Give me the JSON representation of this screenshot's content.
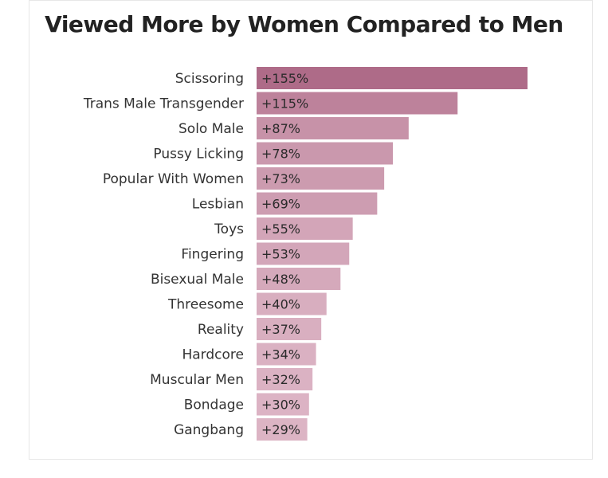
{
  "chart_data": {
    "type": "bar",
    "orientation": "horizontal",
    "title": "Viewed More by Women Compared to Men",
    "categories": [
      "Scissoring",
      "Trans Male Transgender",
      "Solo Male",
      "Pussy Licking",
      "Popular With Women",
      "Lesbian",
      "Toys",
      "Fingering",
      "Bisexual Male",
      "Threesome",
      "Reality",
      "Hardcore",
      "Muscular Men",
      "Bondage",
      "Gangbang"
    ],
    "values": [
      155,
      115,
      87,
      78,
      73,
      69,
      55,
      53,
      48,
      40,
      37,
      34,
      32,
      30,
      29
    ],
    "value_labels": [
      "+155%",
      "+115%",
      "+87%",
      "+78%",
      "+73%",
      "+69%",
      "+55%",
      "+53%",
      "+48%",
      "+40%",
      "+37%",
      "+34%",
      "+32%",
      "+30%",
      "+29%"
    ],
    "unit": "%",
    "xlim": [
      0,
      155
    ],
    "grid": false,
    "colors": {
      "max": "#ae6b88",
      "min": "#dcb4c4"
    }
  }
}
